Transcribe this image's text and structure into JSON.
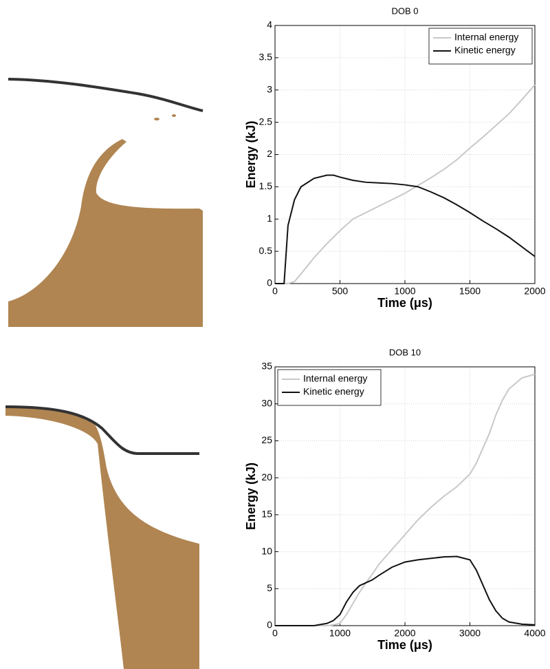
{
  "chart_data": [
    {
      "type": "line",
      "title": "DOB 0",
      "x_label": "Time (μs)",
      "y_label": "Energy (kJ)",
      "x": [
        0,
        50,
        70,
        100,
        150,
        200,
        300,
        400,
        450,
        500,
        600,
        700,
        800,
        900,
        1000,
        1100,
        1200,
        1300,
        1400,
        1500,
        1600,
        1700,
        1800,
        1900,
        2000
      ],
      "series": [
        {
          "name": "Internal energy",
          "color": "#c8c8c8",
          "values": [
            0,
            0,
            0,
            0,
            0.03,
            0.15,
            0.4,
            0.62,
            0.72,
            0.82,
            1.0,
            1.1,
            1.2,
            1.3,
            1.4,
            1.52,
            1.64,
            1.77,
            1.92,
            2.1,
            2.27,
            2.45,
            2.63,
            2.85,
            3.08
          ]
        },
        {
          "name": "Kinetic energy",
          "color": "#111111",
          "values": [
            0,
            0,
            0,
            0.9,
            1.3,
            1.5,
            1.63,
            1.68,
            1.68,
            1.65,
            1.6,
            1.57,
            1.56,
            1.55,
            1.53,
            1.5,
            1.42,
            1.33,
            1.22,
            1.1,
            0.97,
            0.85,
            0.72,
            0.57,
            0.42
          ]
        }
      ],
      "xlim": [
        0,
        2000
      ],
      "xticks": [
        0,
        500,
        1000,
        1500,
        2000
      ],
      "ylim": [
        0,
        4
      ],
      "yticks": [
        0,
        0.5,
        1,
        1.5,
        2,
        2.5,
        3,
        3.5,
        4
      ],
      "grid": true,
      "legend": "upper right"
    },
    {
      "type": "line",
      "title": "DOB 10",
      "x_label": "Time (μs)",
      "y_label": "Energy (kJ)",
      "x": [
        0,
        200,
        400,
        600,
        800,
        900,
        1000,
        1100,
        1200,
        1300,
        1400,
        1500,
        1600,
        1800,
        2000,
        2200,
        2400,
        2600,
        2800,
        3000,
        3100,
        3200,
        3300,
        3400,
        3500,
        3600,
        3800,
        4000
      ],
      "series": [
        {
          "name": "Internal energy",
          "color": "#c8c8c8",
          "values": [
            0,
            0,
            0,
            0,
            0,
            0.1,
            0.3,
            1.5,
            3,
            4.5,
            5.8,
            7,
            8.3,
            10.3,
            12.3,
            14.3,
            16,
            17.5,
            18.8,
            20.5,
            22,
            24,
            26,
            28.5,
            30.5,
            32,
            33.5,
            34
          ]
        },
        {
          "name": "Kinetic energy",
          "color": "#111111",
          "values": [
            0,
            0,
            0,
            0,
            0.3,
            0.7,
            1.5,
            3.2,
            4.5,
            5.4,
            5.8,
            6.2,
            6.8,
            7.9,
            8.6,
            8.9,
            9.1,
            9.3,
            9.35,
            8.9,
            7.5,
            5.5,
            3.5,
            2,
            1,
            0.5,
            0.2,
            0.1
          ]
        }
      ],
      "xlim": [
        0,
        4000
      ],
      "xticks": [
        0,
        1000,
        2000,
        3000,
        4000
      ],
      "ylim": [
        0,
        35
      ],
      "yticks": [
        0,
        5,
        10,
        15,
        20,
        25,
        30,
        35
      ],
      "grid": true,
      "legend": "upper left"
    }
  ]
}
